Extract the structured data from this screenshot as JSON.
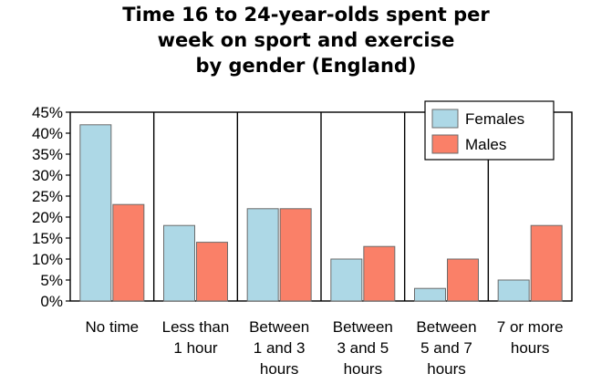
{
  "chart_data": {
    "type": "bar",
    "title_lines": [
      "Time 16 to 24-year-olds spent per",
      "week on sport and exercise",
      "by gender (England)"
    ],
    "categories": [
      [
        "No time"
      ],
      [
        "Less than",
        "1 hour"
      ],
      [
        "Between",
        "1 and 3",
        "hours"
      ],
      [
        "Between",
        "3 and 5",
        "hours"
      ],
      [
        "Between",
        "5 and 7",
        "hours"
      ],
      [
        "7 or more",
        "hours"
      ]
    ],
    "series": [
      {
        "name": "Females",
        "color": "#add8e6",
        "values": [
          42,
          18,
          22,
          10,
          3,
          5
        ]
      },
      {
        "name": "Males",
        "color": "#fa8068",
        "values": [
          23,
          14,
          22,
          13,
          10,
          18
        ]
      }
    ],
    "ylim": [
      0,
      45
    ],
    "yticks": [
      "0%",
      "5%",
      "10%",
      "15%",
      "20%",
      "25%",
      "30%",
      "35%",
      "40%",
      "45%"
    ],
    "legend_position": "top-right",
    "grid": false
  }
}
